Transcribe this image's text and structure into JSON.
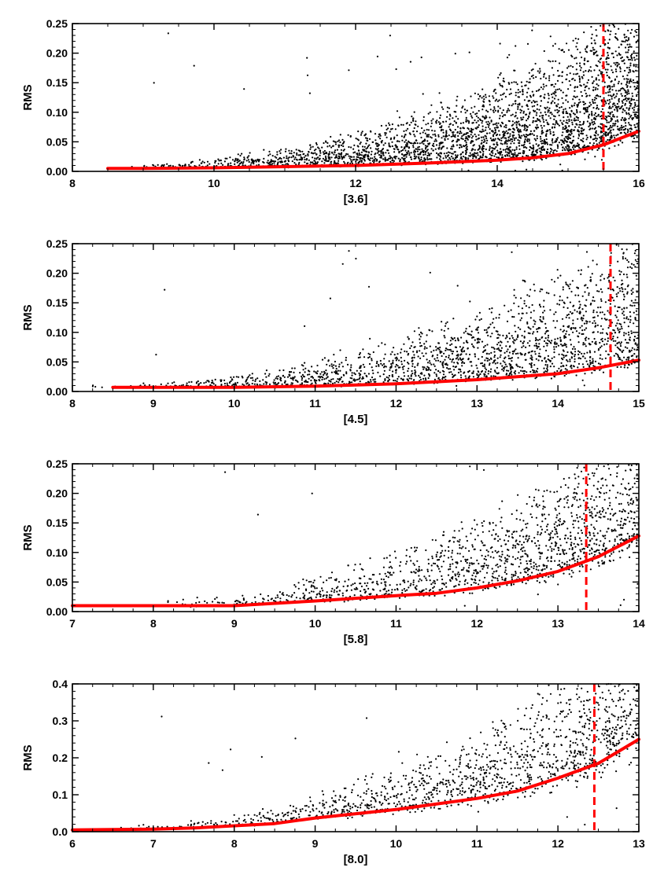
{
  "chart_data": [
    {
      "type": "scatter",
      "xlabel": "[3.6]",
      "ylabel": "RMS",
      "xlim": [
        8,
        16
      ],
      "ylim": [
        0,
        0.25
      ],
      "xticks": [
        "8",
        "10",
        "12",
        "14",
        "16"
      ],
      "yticks": [
        "0.00",
        "0.05",
        "0.10",
        "0.15",
        "0.20",
        "0.25"
      ],
      "cutoff_x": 15.5,
      "trend": {
        "x": [
          8.5,
          9,
          10,
          11,
          12,
          13,
          14,
          14.5,
          15,
          15.5,
          16
        ],
        "y": [
          0.005,
          0.005,
          0.006,
          0.008,
          0.01,
          0.014,
          0.019,
          0.023,
          0.03,
          0.045,
          0.068
        ]
      },
      "scatter_desc": {
        "n": 3200,
        "x_start": 8.5,
        "x_end": 16,
        "seed": 11
      },
      "colors": {
        "points": "#000000",
        "trend": "#ff0000",
        "cutoff": "#ff0000"
      }
    },
    {
      "type": "scatter",
      "xlabel": "[4.5]",
      "ylabel": "RMS",
      "xlim": [
        8,
        15
      ],
      "ylim": [
        0,
        0.25
      ],
      "xticks": [
        "8",
        "9",
        "10",
        "11",
        "12",
        "13",
        "14",
        "15"
      ],
      "yticks": [
        "0.00",
        "0.05",
        "0.10",
        "0.15",
        "0.20",
        "0.25"
      ],
      "cutoff_x": 14.65,
      "trend": {
        "x": [
          8.5,
          9,
          10,
          11,
          12,
          13,
          14,
          14.5,
          15
        ],
        "y": [
          0.007,
          0.007,
          0.007,
          0.009,
          0.013,
          0.02,
          0.03,
          0.04,
          0.053
        ]
      },
      "scatter_desc": {
        "n": 1900,
        "x_start": 8.0,
        "x_end": 15,
        "seed": 23
      },
      "colors": {
        "points": "#000000",
        "trend": "#ff0000",
        "cutoff": "#ff0000"
      }
    },
    {
      "type": "scatter",
      "xlabel": "[5.8]",
      "ylabel": "RMS",
      "xlim": [
        7,
        14
      ],
      "ylim": [
        0,
        0.25
      ],
      "xticks": [
        "7",
        "8",
        "9",
        "10",
        "11",
        "12",
        "13",
        "14"
      ],
      "yticks": [
        "0.00",
        "0.05",
        "0.10",
        "0.15",
        "0.20",
        "0.25"
      ],
      "cutoff_x": 13.35,
      "trend": {
        "x": [
          7,
          8,
          9,
          10,
          11,
          11.5,
          12,
          12.5,
          13,
          13.5,
          14
        ],
        "y": [
          0.01,
          0.01,
          0.01,
          0.018,
          0.027,
          0.031,
          0.04,
          0.052,
          0.068,
          0.093,
          0.128
        ]
      },
      "scatter_desc": {
        "n": 1500,
        "x_start": 7.5,
        "x_end": 14,
        "seed": 37
      },
      "colors": {
        "points": "#000000",
        "trend": "#ff0000",
        "cutoff": "#ff0000"
      }
    },
    {
      "type": "scatter",
      "xlabel": "[8.0]",
      "ylabel": "RMS",
      "xlim": [
        6,
        13
      ],
      "ylim": [
        0,
        0.4
      ],
      "xticks": [
        "6",
        "7",
        "8",
        "9",
        "10",
        "11",
        "12",
        "13"
      ],
      "yticks": [
        "0.0",
        "0.1",
        "0.2",
        "0.3",
        "0.4"
      ],
      "cutoff_x": 12.45,
      "trend": {
        "x": [
          6,
          7,
          7.5,
          8,
          8.5,
          9,
          10,
          11,
          11.5,
          12,
          12.5,
          13
        ],
        "y": [
          0.005,
          0.007,
          0.01,
          0.016,
          0.022,
          0.037,
          0.06,
          0.09,
          0.11,
          0.145,
          0.185,
          0.25
        ]
      },
      "scatter_desc": {
        "n": 1400,
        "x_start": 6.2,
        "x_end": 13,
        "seed": 53
      },
      "colors": {
        "points": "#000000",
        "trend": "#ff0000",
        "cutoff": "#ff0000"
      }
    }
  ]
}
